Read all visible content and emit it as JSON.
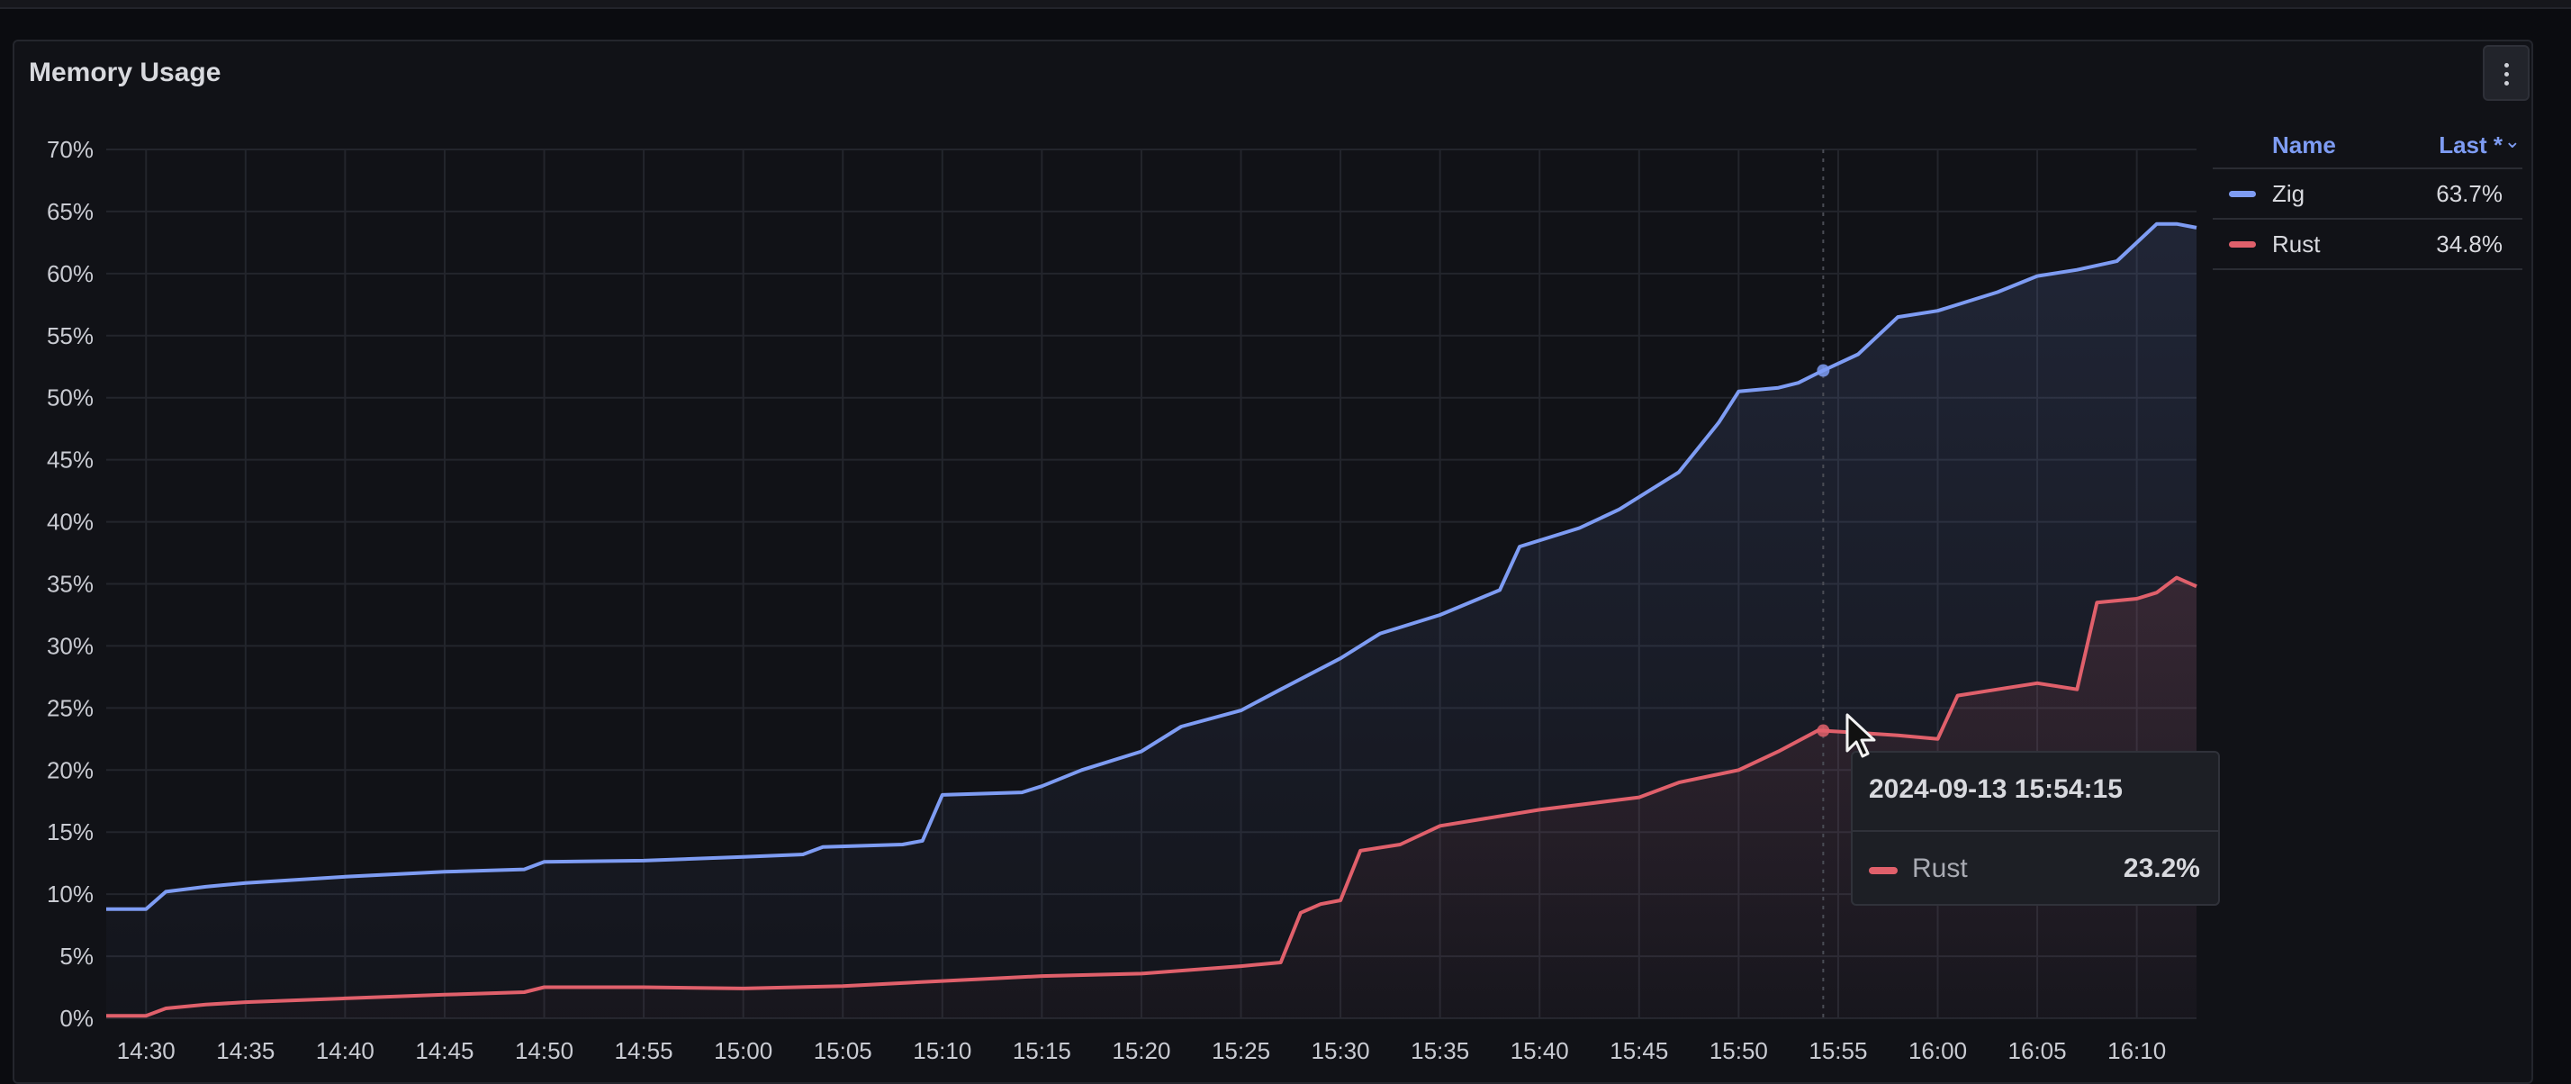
{
  "panel": {
    "title": "Memory Usage",
    "menu_icon": "kebab-vertical-icon"
  },
  "legend": {
    "header_name": "Name",
    "header_last": "Last *",
    "sort_icon": "chevron-down-icon",
    "rows": [
      {
        "name": "Zig",
        "value": "63.7%",
        "color": "#7e9cf3"
      },
      {
        "name": "Rust",
        "value": "34.8%",
        "color": "#e0606b"
      }
    ]
  },
  "tooltip": {
    "time": "2024-09-13 15:54:15",
    "series": "Rust",
    "value": "23.2%",
    "color": "#e0606b"
  },
  "chart_data": {
    "type": "line",
    "y_ticks": [
      "0%",
      "5%",
      "10%",
      "15%",
      "20%",
      "25%",
      "30%",
      "35%",
      "40%",
      "45%",
      "50%",
      "55%",
      "60%",
      "65%",
      "70%"
    ],
    "x_ticks": [
      "14:30",
      "14:35",
      "14:40",
      "14:45",
      "14:50",
      "14:55",
      "15:00",
      "15:05",
      "15:10",
      "15:15",
      "15:20",
      "15:25",
      "15:30",
      "15:35",
      "15:40",
      "15:45",
      "15:50",
      "15:55",
      "16:00",
      "16:05",
      "16:10"
    ],
    "x_range": [
      "14:28",
      "16:13"
    ],
    "ylim": [
      0,
      70
    ],
    "grid": true,
    "legend_position": "right",
    "hover_time": "15:54:15",
    "series": [
      {
        "name": "Zig",
        "color": "#7e9cf3",
        "x": [
          "14:28",
          "14:30",
          "14:31",
          "14:33",
          "14:35",
          "14:40",
          "14:45",
          "14:49",
          "14:50",
          "14:55",
          "15:00",
          "15:03",
          "15:04",
          "15:08",
          "15:09",
          "15:10",
          "15:14",
          "15:15",
          "15:17",
          "15:20",
          "15:22",
          "15:25",
          "15:27",
          "15:30",
          "15:32",
          "15:35",
          "15:38",
          "15:39",
          "15:42",
          "15:44",
          "15:47",
          "15:49",
          "15:50",
          "15:52",
          "15:53",
          "15:54",
          "15:56",
          "15:58",
          "16:00",
          "16:03",
          "16:05",
          "16:07",
          "16:09",
          "16:10",
          "16:11",
          "16:12",
          "16:13"
        ],
        "y": [
          8.8,
          8.8,
          10.2,
          10.6,
          10.9,
          11.4,
          11.8,
          12.0,
          12.6,
          12.7,
          13.0,
          13.2,
          13.8,
          14.0,
          14.3,
          18.0,
          18.2,
          18.7,
          20.0,
          21.5,
          23.5,
          24.8,
          26.5,
          29.0,
          31.0,
          32.5,
          34.5,
          38.0,
          39.5,
          41.0,
          44.0,
          48.0,
          50.5,
          50.8,
          51.2,
          52.0,
          53.5,
          56.5,
          57.0,
          58.5,
          59.8,
          60.3,
          61.0,
          62.5,
          64.0,
          64.0,
          63.7
        ]
      },
      {
        "name": "Rust",
        "color": "#e0606b",
        "x": [
          "14:28",
          "14:30",
          "14:31",
          "14:33",
          "14:35",
          "14:40",
          "14:45",
          "14:49",
          "14:50",
          "14:55",
          "15:00",
          "15:05",
          "15:10",
          "15:15",
          "15:20",
          "15:25",
          "15:27",
          "15:28",
          "15:29",
          "15:30",
          "15:31",
          "15:33",
          "15:35",
          "15:40",
          "15:45",
          "15:47",
          "15:50",
          "15:52",
          "15:54",
          "15:56",
          "15:58",
          "16:00",
          "16:01",
          "16:03",
          "16:05",
          "16:07",
          "16:08",
          "16:10",
          "16:11",
          "16:12",
          "16:13"
        ],
        "y": [
          0.2,
          0.2,
          0.8,
          1.1,
          1.3,
          1.6,
          1.9,
          2.1,
          2.5,
          2.5,
          2.4,
          2.6,
          3.0,
          3.4,
          3.6,
          4.2,
          4.5,
          8.5,
          9.2,
          9.5,
          13.5,
          14.0,
          15.5,
          16.8,
          17.8,
          19.0,
          20.0,
          21.5,
          23.2,
          23.0,
          22.8,
          22.5,
          26.0,
          26.5,
          27.0,
          26.5,
          33.5,
          33.8,
          34.3,
          35.5,
          34.8
        ]
      }
    ]
  }
}
